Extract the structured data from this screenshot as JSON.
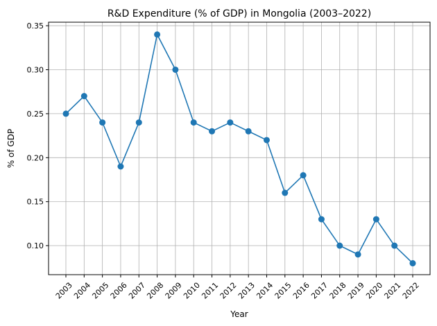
{
  "chart_data": {
    "type": "line",
    "title": "R&D Expenditure (% of GDP) in Mongolia (2003–2022)",
    "xlabel": "Year",
    "ylabel": "% of GDP",
    "x": [
      2003,
      2004,
      2005,
      2006,
      2007,
      2008,
      2009,
      2010,
      2011,
      2012,
      2013,
      2014,
      2015,
      2016,
      2017,
      2018,
      2019,
      2020,
      2021,
      2022
    ],
    "series": [
      {
        "name": "R&D Expenditure",
        "color": "#1f77b4",
        "values": [
          0.25,
          0.27,
          0.24,
          0.19,
          0.24,
          0.34,
          0.3,
          0.24,
          0.23,
          0.24,
          0.23,
          0.22,
          0.16,
          0.18,
          0.13,
          0.1,
          0.09,
          0.13,
          0.1,
          0.08
        ]
      }
    ],
    "yticks": [
      "0.10",
      "0.15",
      "0.20",
      "0.25",
      "0.30",
      "0.35"
    ],
    "ytick_values": [
      0.1,
      0.15,
      0.2,
      0.25,
      0.3,
      0.35
    ],
    "xlim": [
      2002.05,
      2022.95
    ],
    "ylim": [
      0.067,
      0.354
    ],
    "grid": true
  }
}
